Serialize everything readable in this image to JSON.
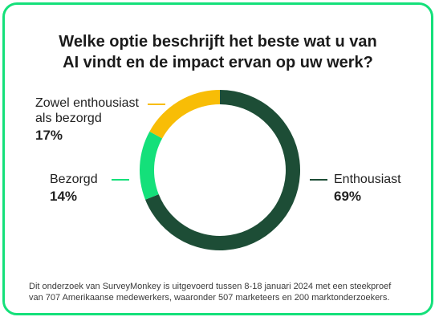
{
  "title": {
    "line1": "Welke optie beschrijft het beste wat u van",
    "line2": "AI vindt en de impact ervan op uw werk?"
  },
  "chart_data": {
    "type": "pie",
    "variant": "donut",
    "legend": "labels-with-leader-lines",
    "slices": [
      {
        "label": "Enthousiast",
        "value": 69,
        "display": "69%",
        "color": "#1d4d36"
      },
      {
        "label": "Bezorgd",
        "value": 14,
        "display": "14%",
        "color": "#14e07a"
      },
      {
        "label_lines": [
          "Zowel enthousiast",
          "als bezorgd"
        ],
        "value": 17,
        "display": "17%",
        "color": "#f8bd06"
      }
    ]
  },
  "footnote": {
    "line1": "Dit onderzoek van SurveyMonkey is uitgevoerd tussen 8-18 januari 2024 met een steekproef",
    "line2": "van 707 Amerikaanse medewerkers, waaronder 507 marketeers en 200 marktonderzoekers."
  },
  "colors": {
    "border": "#14e07a",
    "text": "#1b1b1b"
  }
}
